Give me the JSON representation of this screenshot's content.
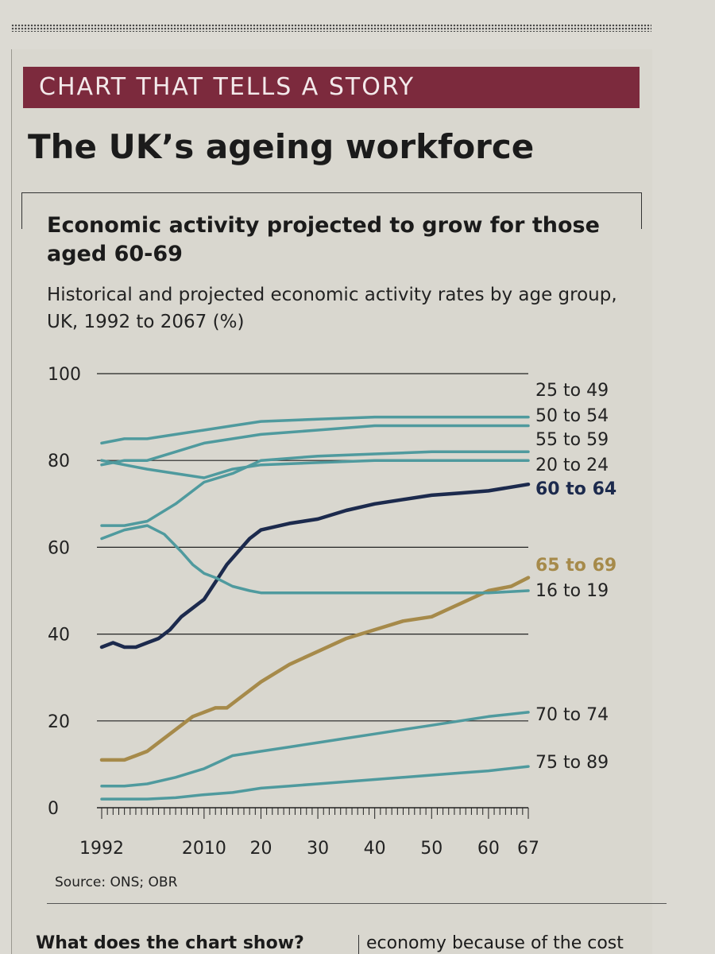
{
  "banner": "CHART THAT TELLS A STORY",
  "headline": "The UK’s ageing workforce",
  "chart_title": "Economic activity projected to grow for those aged 60-69",
  "chart_subtitle": "Historical and projected economic activity rates by age group, UK, 1992 to 2067 (%)",
  "source": "Source: ONS; OBR",
  "footer": {
    "left": "What does the chart show?",
    "right": "economy because of the cost"
  },
  "colors": {
    "background": "#d9d7cf",
    "banner": "#7c2a3d",
    "teal": "#4f9a9e",
    "navy": "#1c2a4d",
    "gold": "#a68a4a",
    "grid": "#222222"
  },
  "chart_data": {
    "type": "line",
    "title": "Economic activity projected to grow for those aged 60-69",
    "subtitle": "Historical and projected economic activity rates by age group, UK, 1992 to 2067 (%)",
    "xlabel": "",
    "ylabel": "",
    "xlim": [
      1992,
      2067
    ],
    "ylim": [
      0,
      100
    ],
    "yticks": [
      0,
      20,
      40,
      60,
      80,
      100
    ],
    "ytick_labels": [
      "0",
      "20",
      "40",
      "60",
      "80",
      "100"
    ],
    "xticks": [
      1992,
      2010,
      2020,
      2030,
      2040,
      2050,
      2060,
      2067
    ],
    "xtick_labels": [
      "1992",
      "2010",
      "20",
      "30",
      "40",
      "50",
      "60",
      "67"
    ],
    "grid": true,
    "series": [
      {
        "name": "25 to 49",
        "color": "#4f9a9e",
        "bold": false,
        "x": [
          1992,
          1996,
          2000,
          2005,
          2010,
          2015,
          2020,
          2030,
          2040,
          2050,
          2060,
          2067
        ],
        "values": [
          84,
          85,
          85,
          86,
          87,
          88,
          89,
          89.5,
          90,
          90,
          90,
          90
        ]
      },
      {
        "name": "50 to 54",
        "color": "#4f9a9e",
        "bold": false,
        "x": [
          1992,
          1996,
          2000,
          2005,
          2010,
          2015,
          2020,
          2030,
          2040,
          2050,
          2060,
          2067
        ],
        "values": [
          79,
          80,
          80,
          82,
          84,
          85,
          86,
          87,
          88,
          88,
          88,
          88
        ]
      },
      {
        "name": "55 to 59",
        "color": "#4f9a9e",
        "bold": false,
        "x": [
          1992,
          1996,
          2000,
          2005,
          2010,
          2015,
          2020,
          2030,
          2040,
          2050,
          2060,
          2067
        ],
        "values": [
          65,
          65,
          66,
          70,
          75,
          77,
          80,
          81,
          81.5,
          82,
          82,
          82
        ]
      },
      {
        "name": "20 to 24",
        "color": "#4f9a9e",
        "bold": false,
        "x": [
          1992,
          1996,
          2000,
          2005,
          2010,
          2015,
          2020,
          2030,
          2040,
          2050,
          2060,
          2067
        ],
        "values": [
          80,
          79,
          78,
          77,
          76,
          78,
          79,
          79.5,
          80,
          80,
          80,
          80
        ]
      },
      {
        "name": "60 to 64",
        "color": "#1c2a4d",
        "bold": true,
        "x": [
          1992,
          1994,
          1996,
          1998,
          2000,
          2002,
          2004,
          2006,
          2008,
          2010,
          2012,
          2014,
          2016,
          2018,
          2020,
          2025,
          2030,
          2035,
          2040,
          2045,
          2050,
          2055,
          2060,
          2067
        ],
        "values": [
          37,
          38,
          37,
          37,
          38,
          39,
          41,
          44,
          46,
          48,
          52,
          56,
          59,
          62,
          64,
          65.5,
          66.5,
          68.5,
          70,
          71,
          72,
          72.5,
          73,
          74.5
        ]
      },
      {
        "name": "65 to 69",
        "color": "#a68a4a",
        "bold": true,
        "x": [
          1992,
          1994,
          1996,
          1998,
          2000,
          2002,
          2004,
          2006,
          2008,
          2010,
          2012,
          2014,
          2016,
          2018,
          2020,
          2025,
          2030,
          2035,
          2040,
          2045,
          2050,
          2055,
          2060,
          2064,
          2067
        ],
        "values": [
          11,
          11,
          11,
          12,
          13,
          15,
          17,
          19,
          21,
          22,
          23,
          23,
          25,
          27,
          29,
          33,
          36,
          39,
          41,
          43,
          44,
          47,
          50,
          51,
          53
        ]
      },
      {
        "name": "16 to 19",
        "color": "#4f9a9e",
        "bold": false,
        "x": [
          1992,
          1996,
          2000,
          2003,
          2006,
          2008,
          2010,
          2012,
          2015,
          2018,
          2020,
          2030,
          2040,
          2050,
          2060,
          2067
        ],
        "values": [
          62,
          64,
          65,
          63,
          59,
          56,
          54,
          53,
          51,
          50,
          49.5,
          49.5,
          49.5,
          49.5,
          49.5,
          50
        ]
      },
      {
        "name": "70 to 74",
        "color": "#4f9a9e",
        "bold": false,
        "x": [
          1992,
          1996,
          2000,
          2005,
          2010,
          2015,
          2020,
          2025,
          2030,
          2035,
          2040,
          2045,
          2050,
          2055,
          2060,
          2067
        ],
        "values": [
          5,
          5,
          5.5,
          7,
          9,
          12,
          13,
          14,
          15,
          16,
          17,
          18,
          19,
          20,
          21,
          22
        ]
      },
      {
        "name": "75 to 89",
        "color": "#4f9a9e",
        "bold": false,
        "x": [
          1992,
          2000,
          2005,
          2010,
          2015,
          2020,
          2025,
          2030,
          2035,
          2040,
          2045,
          2050,
          2055,
          2060,
          2067
        ],
        "values": [
          2,
          2,
          2.3,
          3,
          3.5,
          4.5,
          5,
          5.5,
          6,
          6.5,
          7,
          7.5,
          8,
          8.5,
          9.5
        ]
      }
    ],
    "labels": [
      {
        "text": "25 to 49",
        "color": "#222222",
        "bold": false
      },
      {
        "text": "50 to 54",
        "color": "#222222",
        "bold": false
      },
      {
        "text": "55 to 59",
        "color": "#222222",
        "bold": false
      },
      {
        "text": "20 to 24",
        "color": "#222222",
        "bold": false
      },
      {
        "text": "60 to 64",
        "color": "#1c2a4d",
        "bold": true
      },
      {
        "text": "65 to 69",
        "color": "#a68a4a",
        "bold": true
      },
      {
        "text": "16 to 19",
        "color": "#222222",
        "bold": false
      },
      {
        "text": "70 to 74",
        "color": "#222222",
        "bold": false
      },
      {
        "text": "75 to 89",
        "color": "#222222",
        "bold": false
      }
    ]
  }
}
